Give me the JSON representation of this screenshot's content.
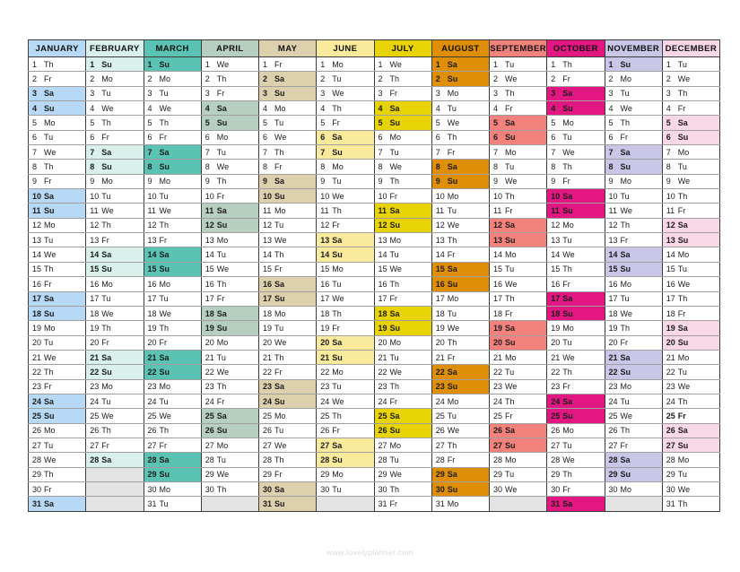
{
  "footer": {
    "url_text": "www.lovelyplanner.com"
  },
  "calendar": {
    "weekend_day_labels": [
      "Sa",
      "Su"
    ],
    "empty_cell_color": "#e3e3e3",
    "months": [
      {
        "name": "JANUARY",
        "color": "#b7d9f5",
        "bold_days": [],
        "days": [
          "Th",
          "Fr",
          "Sa",
          "Su",
          "Mo",
          "Tu",
          "We",
          "Th",
          "Fr",
          "Sa",
          "Su",
          "Mo",
          "Tu",
          "We",
          "Th",
          "Fr",
          "Sa",
          "Su",
          "Mo",
          "Tu",
          "We",
          "Th",
          "Fr",
          "Sa",
          "Su",
          "Mo",
          "Tu",
          "We",
          "Th",
          "Fr",
          "Sa"
        ]
      },
      {
        "name": "FEBRUARY",
        "color": "#d9f1ea",
        "bold_days": [],
        "days": [
          "Su",
          "Mo",
          "Tu",
          "We",
          "Th",
          "Fr",
          "Sa",
          "Su",
          "Mo",
          "Tu",
          "We",
          "Th",
          "Fr",
          "Sa",
          "Su",
          "Mo",
          "Tu",
          "We",
          "Th",
          "Fr",
          "Sa",
          "Su",
          "Mo",
          "Tu",
          "We",
          "Th",
          "Fr",
          "Sa"
        ]
      },
      {
        "name": "MARCH",
        "color": "#5ac3b3",
        "bold_days": [],
        "days": [
          "Su",
          "Mo",
          "Tu",
          "We",
          "Th",
          "Fr",
          "Sa",
          "Su",
          "Mo",
          "Tu",
          "We",
          "Th",
          "Fr",
          "Sa",
          "Su",
          "Mo",
          "Tu",
          "We",
          "Th",
          "Fr",
          "Sa",
          "Su",
          "Mo",
          "Tu",
          "We",
          "Th",
          "Fr",
          "Sa",
          "Su",
          "Mo",
          "Tu"
        ]
      },
      {
        "name": "APRIL",
        "color": "#b6cfc1",
        "bold_days": [],
        "days": [
          "We",
          "Th",
          "Fr",
          "Sa",
          "Su",
          "Mo",
          "Tu",
          "We",
          "Th",
          "Fr",
          "Sa",
          "Su",
          "Mo",
          "Tu",
          "We",
          "Th",
          "Fr",
          "Sa",
          "Su",
          "Mo",
          "Tu",
          "We",
          "Th",
          "Fr",
          "Sa",
          "Su",
          "Mo",
          "Tu",
          "We",
          "Th"
        ]
      },
      {
        "name": "MAY",
        "color": "#ddd0ad",
        "bold_days": [],
        "days": [
          "Fr",
          "Sa",
          "Su",
          "Mo",
          "Tu",
          "We",
          "Th",
          "Fr",
          "Sa",
          "Su",
          "Mo",
          "Tu",
          "We",
          "Th",
          "Fr",
          "Sa",
          "Su",
          "Mo",
          "Tu",
          "We",
          "Th",
          "Fr",
          "Sa",
          "Su",
          "Mo",
          "Tu",
          "We",
          "Th",
          "Fr",
          "Sa",
          "Su"
        ]
      },
      {
        "name": "JUNE",
        "color": "#f9ea9c",
        "bold_days": [],
        "days": [
          "Mo",
          "Tu",
          "We",
          "Th",
          "Fr",
          "Sa",
          "Su",
          "Mo",
          "Tu",
          "We",
          "Th",
          "Fr",
          "Sa",
          "Su",
          "Mo",
          "Tu",
          "We",
          "Th",
          "Fr",
          "Sa",
          "Su",
          "Mo",
          "Tu",
          "We",
          "Th",
          "Fr",
          "Sa",
          "Su",
          "Mo",
          "Tu"
        ]
      },
      {
        "name": "JULY",
        "color": "#e8d306",
        "bold_days": [],
        "days": [
          "We",
          "Th",
          "Fr",
          "Sa",
          "Su",
          "Mo",
          "Tu",
          "We",
          "Th",
          "Fr",
          "Sa",
          "Su",
          "Mo",
          "Tu",
          "We",
          "Th",
          "Fr",
          "Sa",
          "Su",
          "Mo",
          "Tu",
          "We",
          "Th",
          "Fr",
          "Sa",
          "Su",
          "Mo",
          "Tu",
          "We",
          "Th",
          "Fr"
        ]
      },
      {
        "name": "AUGUST",
        "color": "#df8e08",
        "bold_days": [],
        "days": [
          "Sa",
          "Su",
          "Mo",
          "Tu",
          "We",
          "Th",
          "Fr",
          "Sa",
          "Su",
          "Mo",
          "Tu",
          "We",
          "Th",
          "Fr",
          "Sa",
          "Su",
          "Mo",
          "Tu",
          "We",
          "Th",
          "Fr",
          "Sa",
          "Su",
          "Mo",
          "Tu",
          "We",
          "Th",
          "Fr",
          "Sa",
          "Su",
          "Mo"
        ]
      },
      {
        "name": "SEPTEMBER",
        "color": "#f4827c",
        "bold_days": [],
        "days": [
          "Tu",
          "We",
          "Th",
          "Fr",
          "Sa",
          "Su",
          "Mo",
          "Tu",
          "We",
          "Th",
          "Fr",
          "Sa",
          "Su",
          "Mo",
          "Tu",
          "We",
          "Th",
          "Fr",
          "Sa",
          "Su",
          "Mo",
          "Tu",
          "We",
          "Th",
          "Fr",
          "Sa",
          "Su",
          "Mo",
          "Tu",
          "We"
        ]
      },
      {
        "name": "OCTOBER",
        "color": "#e21781",
        "bold_days": [],
        "days": [
          "Th",
          "Fr",
          "Sa",
          "Su",
          "Mo",
          "Tu",
          "We",
          "Th",
          "Fr",
          "Sa",
          "Su",
          "Mo",
          "Tu",
          "We",
          "Th",
          "Fr",
          "Sa",
          "Su",
          "Mo",
          "Tu",
          "We",
          "Th",
          "Fr",
          "Sa",
          "Su",
          "Mo",
          "Tu",
          "We",
          "Th",
          "Fr",
          "Sa"
        ]
      },
      {
        "name": "NOVEMBER",
        "color": "#cac6e7",
        "bold_days": [],
        "days": [
          "Su",
          "Mo",
          "Tu",
          "We",
          "Th",
          "Fr",
          "Sa",
          "Su",
          "Mo",
          "Tu",
          "We",
          "Th",
          "Fr",
          "Sa",
          "Su",
          "Mo",
          "Tu",
          "We",
          "Th",
          "Fr",
          "Sa",
          "Su",
          "Mo",
          "Tu",
          "We",
          "Th",
          "Fr",
          "Sa",
          "Su",
          "Mo"
        ]
      },
      {
        "name": "DECEMBER",
        "color": "#f8d7e7",
        "bold_days": [
          25
        ],
        "days": [
          "Tu",
          "We",
          "Th",
          "Fr",
          "Sa",
          "Su",
          "Mo",
          "Tu",
          "We",
          "Th",
          "Fr",
          "Sa",
          "Su",
          "Mo",
          "Tu",
          "We",
          "Th",
          "Fr",
          "Sa",
          "Su",
          "Mo",
          "Tu",
          "We",
          "Th",
          "Fr",
          "Sa",
          "Su",
          "Mo",
          "Tu",
          "We",
          "Th"
        ]
      }
    ]
  }
}
